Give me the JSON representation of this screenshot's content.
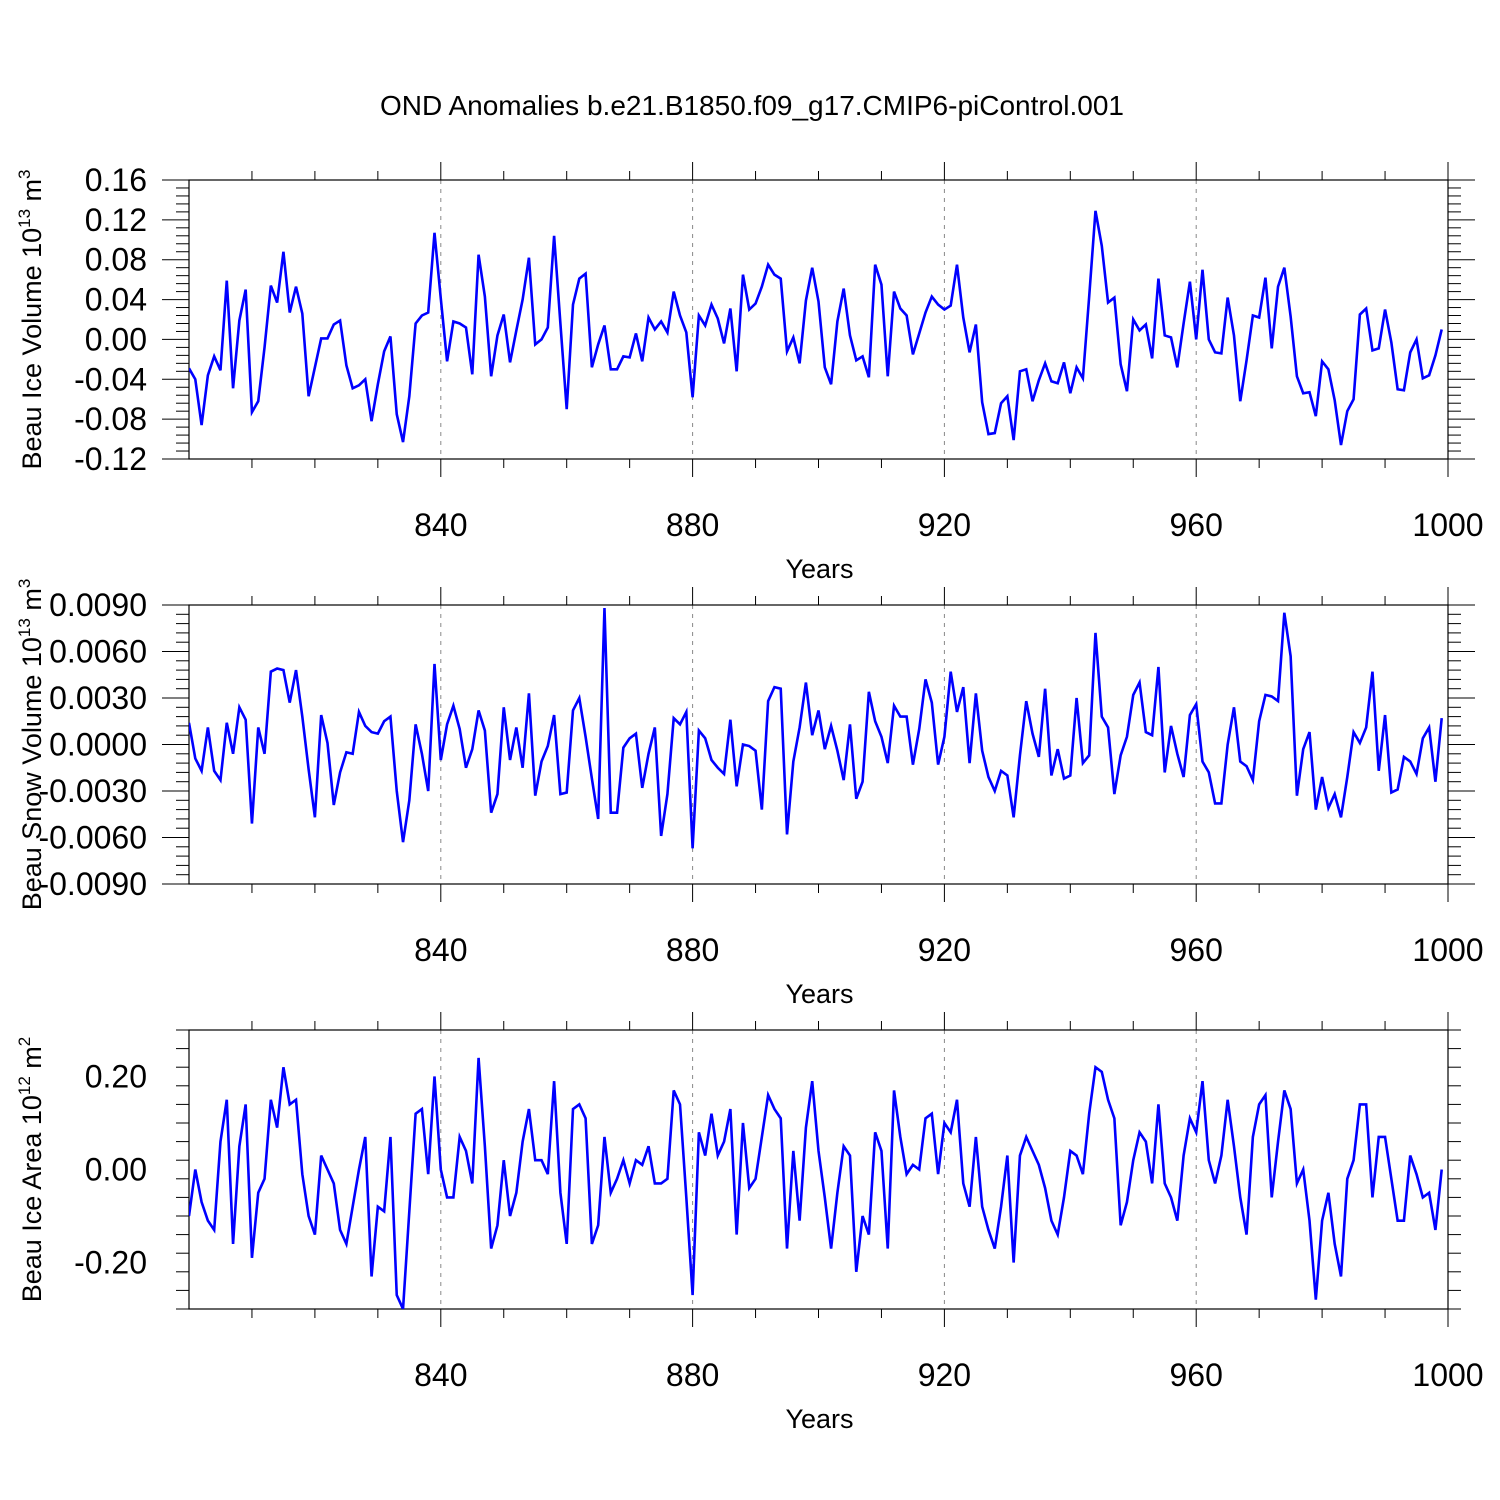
{
  "title": "OND Anomalies b.e21.B1850.f09_g17.CMIP6-piControl.001",
  "colors": {
    "line": "#0000ff",
    "axis": "#000000",
    "grid": "#888888"
  },
  "chart_data": [
    {
      "type": "line",
      "ylabel": {
        "text": "Beau Ice Volume 10",
        "exp": "13",
        "unit": "m",
        "unit_exp": "3"
      },
      "xlabel": "Years",
      "xlim": [
        800,
        1000
      ],
      "ylim": [
        -0.12,
        0.16
      ],
      "xticks": [
        840,
        880,
        920,
        960,
        1000
      ],
      "xtick_labels": [
        "840",
        "880",
        "920",
        "960",
        "1000"
      ],
      "yticks": [
        -0.12,
        -0.08,
        -0.04,
        0.0,
        0.04,
        0.08,
        0.12,
        0.16
      ],
      "ytick_labels": [
        "-0.12",
        "-0.08",
        "-0.04",
        "0.00",
        "0.04",
        "0.08",
        "0.12",
        "0.16"
      ],
      "grid": "vertical dashed at major x ticks",
      "x_start": 800,
      "values": [
        -0.029,
        -0.04,
        -0.086,
        -0.036,
        -0.017,
        -0.031,
        0.059,
        -0.049,
        0.019,
        0.05,
        -0.073,
        -0.062,
        -0.008,
        0.054,
        0.037,
        0.088,
        0.027,
        0.053,
        0.026,
        -0.057,
        -0.028,
        0.001,
        0.001,
        0.015,
        0.019,
        -0.026,
        -0.049,
        -0.046,
        -0.04,
        -0.082,
        -0.045,
        -0.012,
        0.003,
        -0.075,
        -0.103,
        -0.057,
        0.016,
        0.024,
        0.027,
        0.107,
        0.041,
        -0.022,
        0.018,
        0.016,
        0.012,
        -0.035,
        0.085,
        0.043,
        -0.037,
        0.004,
        0.025,
        -0.023,
        0.009,
        0.04,
        0.082,
        -0.005,
        0.0,
        0.012,
        0.104,
        0.016,
        -0.07,
        0.035,
        0.061,
        0.066,
        -0.028,
        -0.005,
        0.014,
        -0.03,
        -0.03,
        -0.017,
        -0.018,
        0.006,
        -0.022,
        0.022,
        0.01,
        0.018,
        0.007,
        0.048,
        0.024,
        0.007,
        -0.058,
        0.024,
        0.014,
        0.035,
        0.021,
        -0.004,
        0.031,
        -0.032,
        0.065,
        0.03,
        0.036,
        0.053,
        0.075,
        0.065,
        0.061,
        -0.012,
        0.002,
        -0.024,
        0.039,
        0.072,
        0.038,
        -0.028,
        -0.045,
        0.018,
        0.051,
        0.004,
        -0.021,
        -0.017,
        -0.038,
        0.075,
        0.055,
        -0.037,
        0.048,
        0.031,
        0.024,
        -0.015,
        0.006,
        0.027,
        0.043,
        0.035,
        0.03,
        0.034,
        0.075,
        0.022,
        -0.013,
        0.015,
        -0.063,
        -0.095,
        -0.094,
        -0.064,
        -0.057,
        -0.101,
        -0.032,
        -0.03,
        -0.062,
        -0.041,
        -0.024,
        -0.042,
        -0.044,
        -0.023,
        -0.054,
        -0.028,
        -0.039,
        0.043,
        0.129,
        0.094,
        0.037,
        0.042,
        -0.025,
        -0.052,
        0.02,
        0.009,
        0.015,
        -0.019,
        0.061,
        0.004,
        0.002,
        -0.028,
        0.016,
        0.058,
        0.0,
        0.07,
        0.0,
        -0.013,
        -0.014,
        0.042,
        0.004,
        -0.062,
        -0.021,
        0.024,
        0.022,
        0.062,
        -0.009,
        0.053,
        0.072,
        0.023,
        -0.037,
        -0.054,
        -0.053,
        -0.077,
        -0.022,
        -0.03,
        -0.061,
        -0.106,
        -0.072,
        -0.06,
        0.025,
        0.031,
        -0.011,
        -0.009,
        0.03,
        -0.003,
        -0.05,
        -0.051,
        -0.013,
        0.0,
        -0.039,
        -0.036,
        -0.016,
        0.01
      ]
    },
    {
      "type": "line",
      "ylabel": {
        "text": "Beau Snow Volume 10",
        "exp": "13",
        "unit": "m",
        "unit_exp": "3"
      },
      "xlabel": "Years",
      "xlim": [
        800,
        1000
      ],
      "ylim": [
        -0.009,
        0.009
      ],
      "xticks": [
        840,
        880,
        920,
        960,
        1000
      ],
      "xtick_labels": [
        "840",
        "880",
        "920",
        "960",
        "1000"
      ],
      "yticks": [
        -0.009,
        -0.006,
        -0.003,
        0.0,
        0.003,
        0.006,
        0.009
      ],
      "ytick_labels": [
        "-0.0090",
        "-0.0060",
        "-0.0030",
        "0.0000",
        "0.0030",
        "0.0060",
        "0.0090"
      ],
      "grid": "vertical dashed at major x ticks",
      "x_start": 800,
      "values": [
        0.0014,
        -0.0009,
        -0.0017,
        0.0011,
        -0.0017,
        -0.0023,
        0.0014,
        -0.0006,
        0.0024,
        0.0016,
        -0.0051,
        0.0011,
        -0.0006,
        0.0047,
        0.0049,
        0.0048,
        0.0027,
        0.0048,
        0.0018,
        -0.0016,
        -0.0047,
        0.0019,
        0.0001,
        -0.0039,
        -0.0018,
        -0.0005,
        -0.0006,
        0.0021,
        0.0012,
        0.0008,
        0.0007,
        0.0015,
        0.0018,
        -0.003,
        -0.0063,
        -0.0036,
        0.0013,
        -0.0006,
        -0.003,
        0.0052,
        -0.001,
        0.0013,
        0.0025,
        0.001,
        -0.0015,
        -0.0003,
        0.0022,
        0.0009,
        -0.0044,
        -0.0032,
        0.0024,
        -0.001,
        0.0011,
        -0.0015,
        0.0033,
        -0.0033,
        -0.0011,
        -0.0001,
        0.0019,
        -0.0032,
        -0.0031,
        0.0022,
        0.003,
        0.0005,
        -0.0022,
        -0.0048,
        0.0088,
        -0.0044,
        -0.0044,
        -0.0002,
        0.0004,
        0.0007,
        -0.0028,
        -0.0006,
        0.0011,
        -0.0059,
        -0.0032,
        0.0017,
        0.0013,
        0.0021,
        -0.0067,
        0.0009,
        0.0004,
        -0.001,
        -0.0015,
        -0.0019,
        0.0016,
        -0.0027,
        0.0,
        -0.0001,
        -0.0004,
        -0.0042,
        0.0028,
        0.0037,
        0.0036,
        -0.0058,
        -0.0011,
        0.0011,
        0.004,
        0.0006,
        0.0022,
        -0.0003,
        0.0012,
        -0.0004,
        -0.0023,
        0.0013,
        -0.0035,
        -0.0024,
        0.0034,
        0.0015,
        0.0005,
        -0.0012,
        0.0025,
        0.0018,
        0.0018,
        -0.0013,
        0.001,
        0.0042,
        0.0027,
        -0.0013,
        0.0005,
        0.0047,
        0.0021,
        0.0037,
        -0.0012,
        0.0033,
        -0.0004,
        -0.0021,
        -0.003,
        -0.0017,
        -0.002,
        -0.0047,
        -0.0007,
        0.0028,
        0.0007,
        -0.0008,
        0.0036,
        -0.002,
        -0.0003,
        -0.0022,
        -0.002,
        0.003,
        -0.0012,
        -0.0007,
        0.0072,
        0.0018,
        0.0011,
        -0.0032,
        -0.0007,
        0.0005,
        0.0032,
        0.004,
        0.0008,
        0.0006,
        0.005,
        -0.0018,
        0.0012,
        -0.0006,
        -0.0021,
        0.0019,
        0.0026,
        -0.0011,
        -0.0018,
        -0.0038,
        -0.0038,
        0.0,
        0.0024,
        -0.0011,
        -0.0014,
        -0.0023,
        0.0015,
        0.0032,
        0.0031,
        0.0028,
        0.0085,
        0.0057,
        -0.0033,
        -0.0003,
        0.0008,
        -0.0042,
        -0.0021,
        -0.0041,
        -0.0032,
        -0.0047,
        -0.0021,
        0.0008,
        0.0001,
        0.0011,
        0.0047,
        -0.0017,
        0.0019,
        -0.0031,
        -0.0029,
        -0.0008,
        -0.0011,
        -0.0019,
        0.0004,
        0.0011,
        -0.0024,
        0.0017
      ]
    },
    {
      "type": "line",
      "ylabel": {
        "text": "Beau Ice Area 10",
        "exp": "12",
        "unit": "m",
        "unit_exp": "2"
      },
      "xlabel": "Years",
      "xlim": [
        800,
        1000
      ],
      "ylim": [
        -0.3,
        0.3
      ],
      "xticks": [
        840,
        880,
        920,
        960,
        1000
      ],
      "xtick_labels": [
        "840",
        "880",
        "920",
        "960",
        "1000"
      ],
      "yticks": [
        -0.2,
        0.0,
        0.2
      ],
      "ytick_labels": [
        "-0.20",
        "0.00",
        "0.20"
      ],
      "grid": "vertical dashed at major x ticks",
      "x_start": 800,
      "values": [
        -0.1,
        0.0,
        -0.07,
        -0.11,
        -0.13,
        0.06,
        0.15,
        -0.16,
        0.05,
        0.14,
        -0.19,
        -0.05,
        -0.02,
        0.15,
        0.09,
        0.22,
        0.14,
        0.15,
        -0.01,
        -0.1,
        -0.14,
        0.03,
        0.0,
        -0.03,
        -0.13,
        -0.16,
        -0.08,
        0.0,
        0.07,
        -0.23,
        -0.08,
        -0.09,
        0.07,
        -0.27,
        -0.3,
        -0.09,
        0.12,
        0.13,
        -0.01,
        0.2,
        0.0,
        -0.06,
        -0.06,
        0.07,
        0.04,
        -0.03,
        0.24,
        0.05,
        -0.17,
        -0.12,
        0.02,
        -0.1,
        -0.05,
        0.06,
        0.13,
        0.02,
        0.02,
        -0.01,
        0.19,
        -0.05,
        -0.16,
        0.13,
        0.14,
        0.11,
        -0.16,
        -0.12,
        0.07,
        -0.05,
        -0.02,
        0.02,
        -0.03,
        0.02,
        0.01,
        0.05,
        -0.03,
        -0.03,
        -0.02,
        0.17,
        0.14,
        -0.06,
        -0.27,
        0.08,
        0.03,
        0.12,
        0.03,
        0.06,
        0.13,
        -0.14,
        0.1,
        -0.04,
        -0.02,
        0.07,
        0.16,
        0.13,
        0.11,
        -0.17,
        0.04,
        -0.11,
        0.09,
        0.19,
        0.04,
        -0.06,
        -0.17,
        -0.05,
        0.05,
        0.03,
        -0.22,
        -0.1,
        -0.14,
        0.08,
        0.04,
        -0.17,
        0.17,
        0.07,
        -0.01,
        0.01,
        0.0,
        0.11,
        0.12,
        -0.01,
        0.1,
        0.08,
        0.15,
        -0.03,
        -0.08,
        0.07,
        -0.08,
        -0.13,
        -0.17,
        -0.08,
        0.03,
        -0.2,
        0.03,
        0.07,
        0.04,
        0.01,
        -0.04,
        -0.11,
        -0.14,
        -0.06,
        0.04,
        0.03,
        -0.01,
        0.12,
        0.22,
        0.21,
        0.15,
        0.11,
        -0.12,
        -0.07,
        0.02,
        0.08,
        0.06,
        -0.03,
        0.14,
        -0.03,
        -0.06,
        -0.11,
        0.03,
        0.11,
        0.08,
        0.19,
        0.02,
        -0.03,
        0.03,
        0.15,
        0.05,
        -0.06,
        -0.14,
        0.07,
        0.14,
        0.16,
        -0.06,
        0.06,
        0.17,
        0.13,
        -0.03,
        0.0,
        -0.11,
        -0.28,
        -0.11,
        -0.05,
        -0.16,
        -0.23,
        -0.02,
        0.02,
        0.14,
        0.14,
        -0.06,
        0.07,
        0.07,
        -0.02,
        -0.11,
        -0.11,
        0.03,
        -0.01,
        -0.06,
        -0.05,
        -0.13,
        0.0
      ]
    }
  ]
}
